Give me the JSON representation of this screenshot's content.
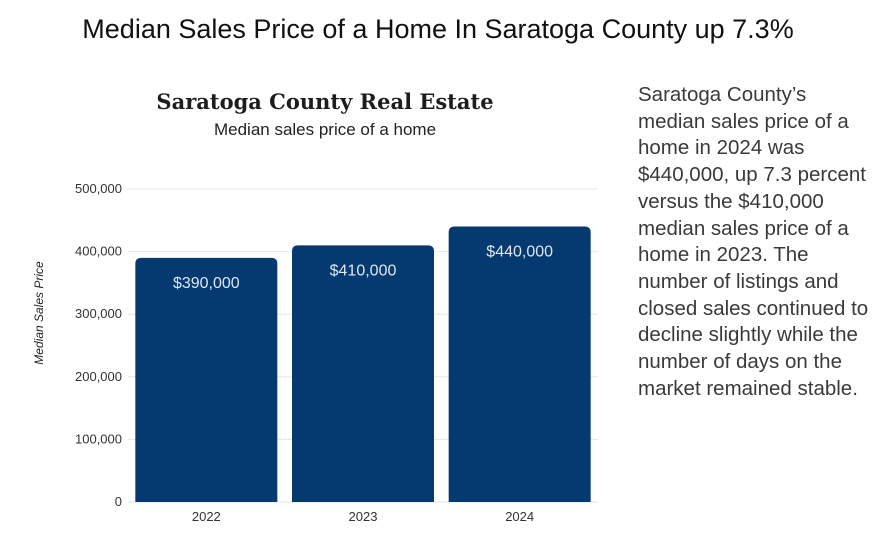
{
  "page": {
    "title": "Median Sales Price of a Home In Saratoga County up 7.3%",
    "paragraph": "Saratoga County’s median sales price of a home in 2024 was $440,000, up 7.3 percent versus the $410,000 median sales price of a home in 2023. The number of listings and closed sales continued to decline slightly while the number of days on the market remained stable."
  },
  "chart_data": {
    "type": "bar",
    "title": "Saratoga County Real Estate",
    "subtitle": "Median sales price of a home",
    "ylabel": "Median Sales Price",
    "xlabel": "",
    "categories": [
      "2022",
      "2023",
      "2024"
    ],
    "values": [
      390000,
      410000,
      440000
    ],
    "data_labels": [
      "$390,000",
      "$410,000",
      "$440,000"
    ],
    "ylim": [
      0,
      500000
    ],
    "yticks": [
      0,
      100000,
      200000,
      300000,
      400000,
      500000
    ],
    "ytick_labels": [
      "0",
      "100,000",
      "200,000",
      "300,000",
      "400,000",
      "500,000"
    ],
    "grid": true,
    "bar_color": "#043a70"
  }
}
